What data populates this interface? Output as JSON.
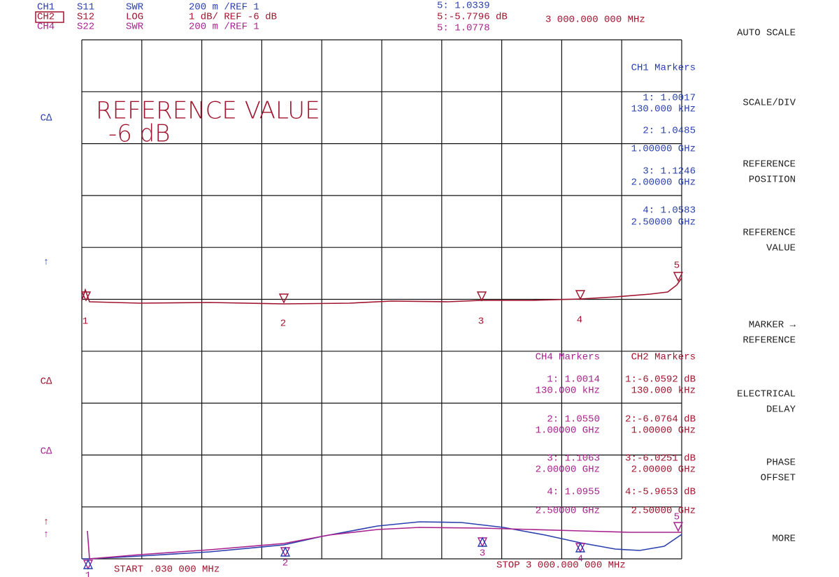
{
  "header": {
    "channels": [
      [
        "CH1",
        "S11",
        "SWR",
        "200 m /REF 1"
      ],
      [
        "CH2",
        "S12",
        "LOG",
        "1 dB/ REF -6 dB"
      ],
      [
        "CH4",
        "S22",
        "SWR",
        "200 m /REF 1"
      ]
    ],
    "active": [
      "5: 1.0339",
      "5:-5.7796 dB",
      "5: 1.0778"
    ],
    "frequency": "3 000.000 000 MHz"
  },
  "softkeys": [
    [
      "AUTO SCALE"
    ],
    [
      "SCALE/DIV"
    ],
    [
      "REFERENCE",
      "POSITION"
    ],
    [
      "REFERENCE",
      "VALUE"
    ],
    [
      "MARKER →",
      "REFERENCE"
    ],
    [
      "ELECTRICAL",
      "DELAY"
    ],
    [
      "PHASE",
      "OFFSET"
    ],
    [
      "MORE"
    ]
  ],
  "annotation": [
    "REFERENCE VALUE",
    "-6 dB"
  ],
  "side_labels": [
    "C∆",
    "↑",
    "C∆",
    "C∆",
    "↑",
    "↑"
  ],
  "ch1_markers": {
    "title": "CH1 Markers",
    "items": [
      [
        "1: 1.0017",
        "130.000 kHz"
      ],
      [
        "2: 1.0485",
        "1.00000 GHz"
      ],
      [
        "3: 1.1246",
        "2.00000 GHz"
      ],
      [
        "4: 1.0583",
        "2.50000 GHz"
      ]
    ]
  },
  "ch4_markers": {
    "title": "CH4 Markers",
    "items": [
      [
        "1: 1.0014",
        "130.000 kHz"
      ],
      [
        "2: 1.0550",
        "1.00000 GHz"
      ],
      [
        "3: 1.1063",
        "2.00000 GHz"
      ],
      [
        "4: 1.0955",
        "2.50000 GHz"
      ]
    ]
  },
  "ch2_markers": {
    "title": "CH2 Markers",
    "items": [
      [
        "1:-6.0592 dB",
        "130.000 kHz"
      ],
      [
        "2:-6.0764 dB",
        "1.00000 GHz"
      ],
      [
        "3:-6.0251 dB",
        "2.00000 GHz"
      ],
      [
        "4:-5.9653 dB",
        "2.50000 GHz"
      ]
    ]
  },
  "marker_numbers": [
    "1",
    "2",
    "3",
    "4",
    "5"
  ],
  "start": "START  .030 000 MHz",
  "stop": "STOP 3 000.000 000 MHz"
}
